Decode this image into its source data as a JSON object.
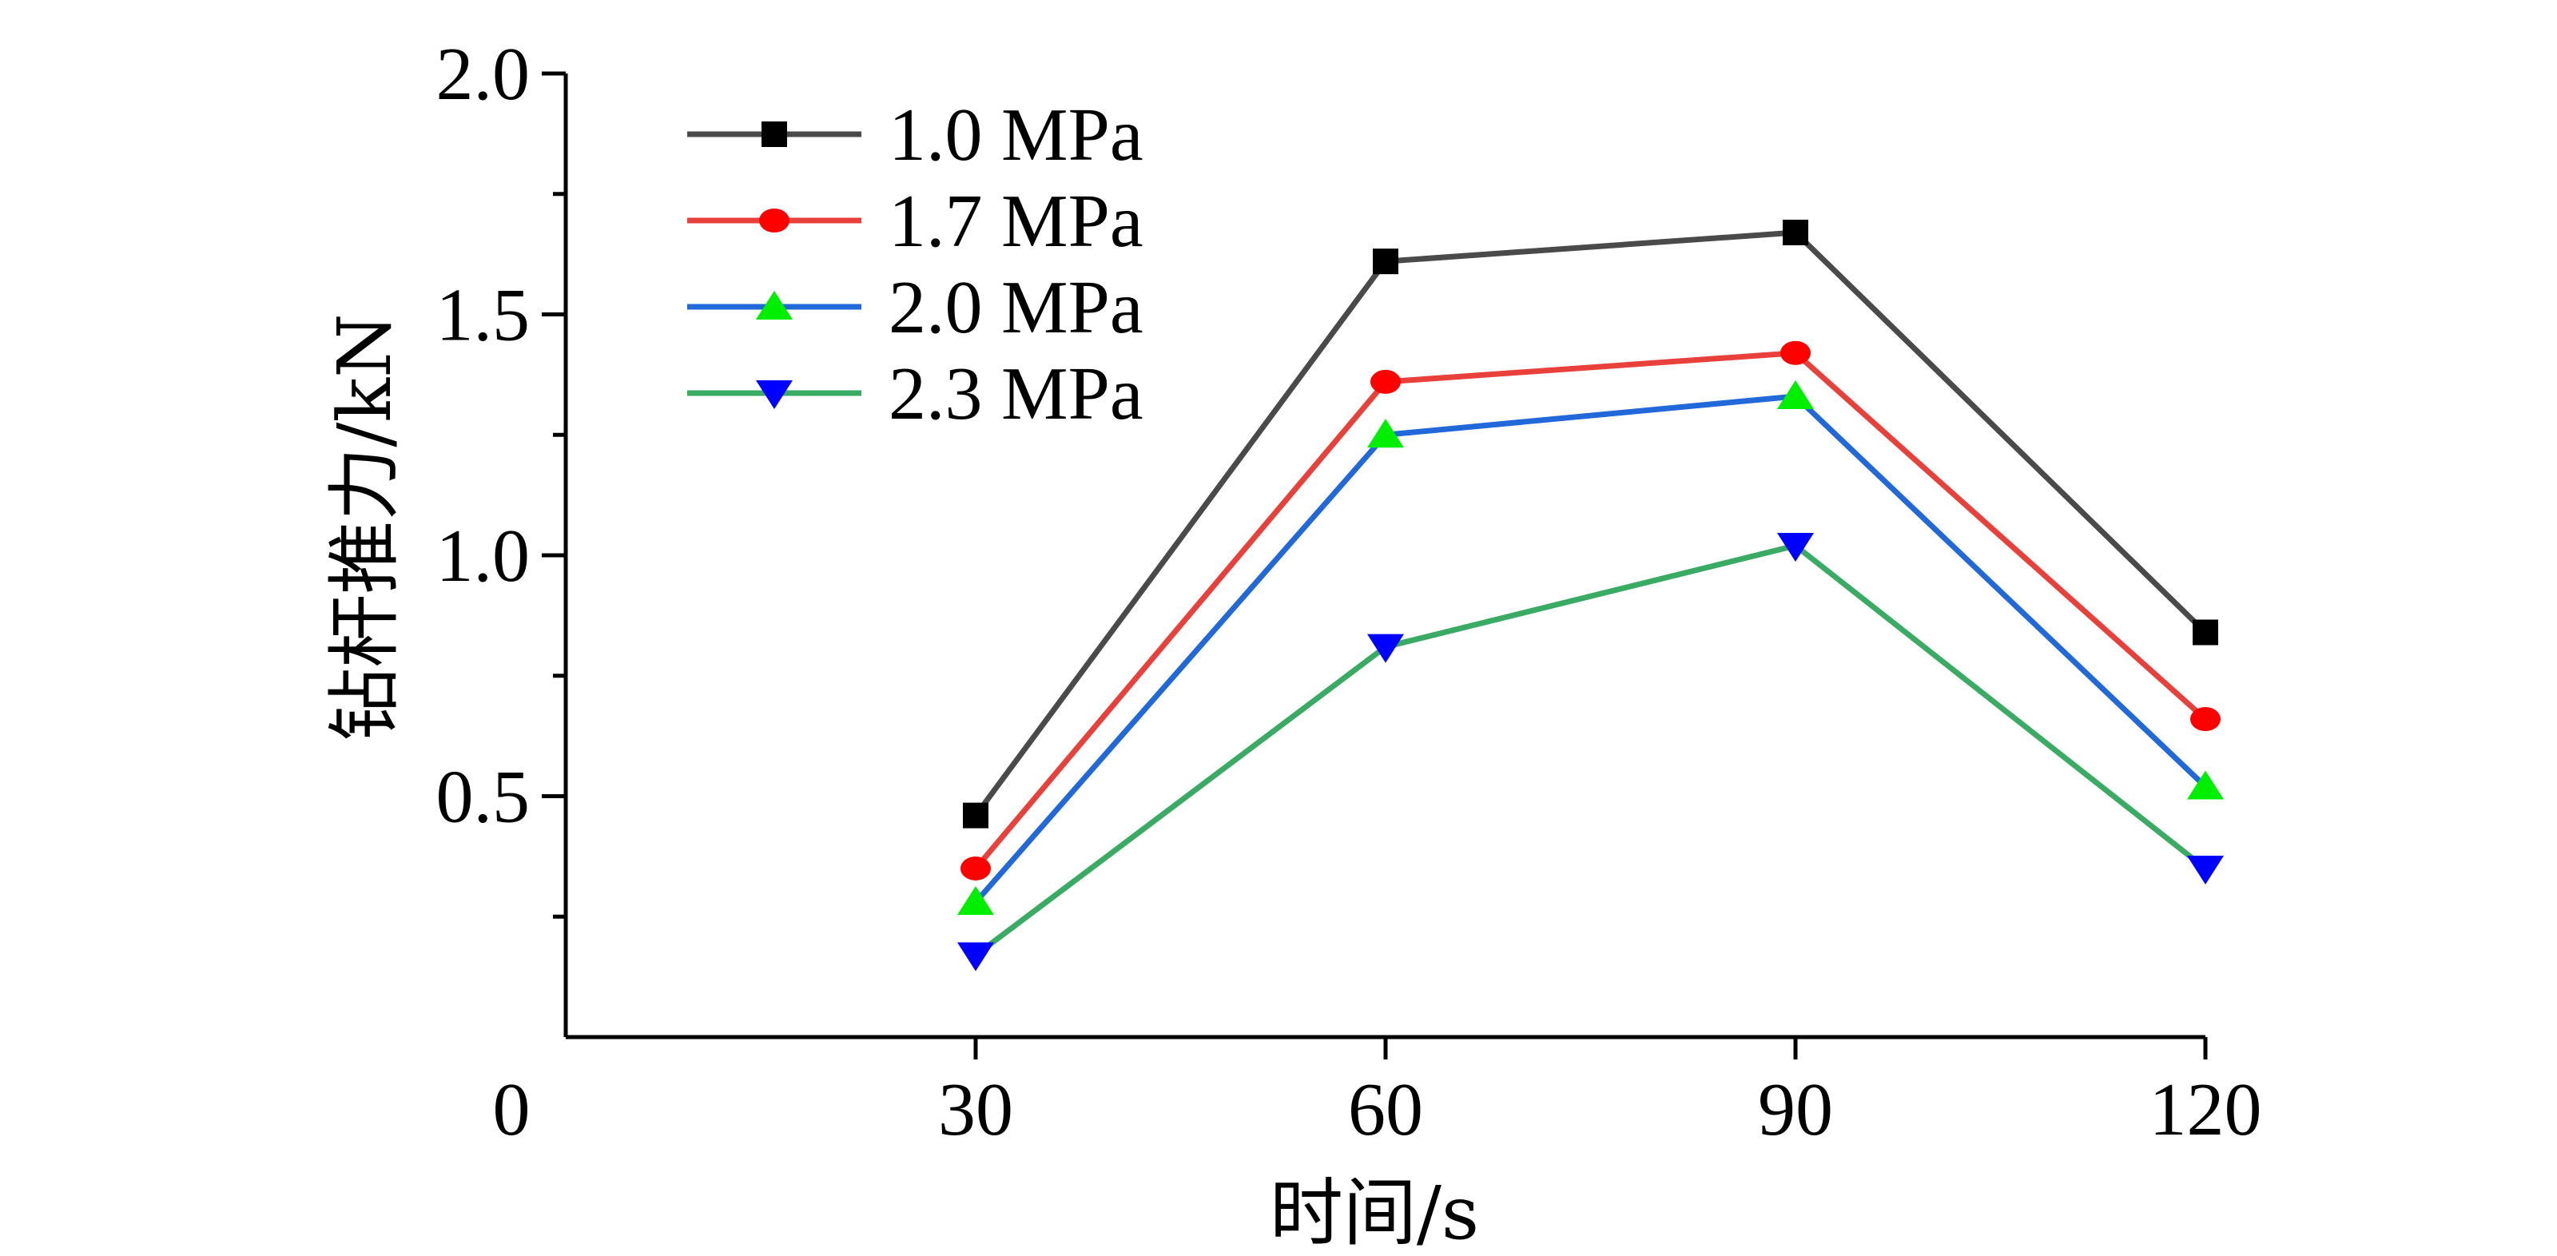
{
  "chart_data": {
    "type": "line",
    "title": "",
    "xlabel": "时间/s",
    "ylabel": "钻杆推力/kN",
    "x": [
      30,
      60,
      90,
      120
    ],
    "xlim": [
      0,
      120
    ],
    "ylim": [
      0,
      2.0
    ],
    "x_ticks": [
      "0",
      "30",
      "60",
      "90",
      "120"
    ],
    "y_ticks": [
      "0.5",
      "1.0",
      "1.5",
      "2.0"
    ],
    "grid": false,
    "legend_position": "top-left",
    "series": [
      {
        "name": "1.0 MPa",
        "values": [
          0.46,
          1.61,
          1.67,
          0.84
        ],
        "line_color": "#4a4a4a",
        "marker_color": "#000000",
        "marker": "square"
      },
      {
        "name": "1.7 MPa",
        "values": [
          0.35,
          1.36,
          1.42,
          0.66
        ],
        "line_color": "#e8413c",
        "marker_color": "#ff0000",
        "marker": "circle"
      },
      {
        "name": "2.0 MPa",
        "values": [
          0.28,
          1.25,
          1.33,
          0.52
        ],
        "line_color": "#2168d8",
        "marker_color": "#00ee00",
        "marker": "triangle-up"
      },
      {
        "name": "2.3 MPa",
        "values": [
          0.17,
          0.81,
          1.02,
          0.35
        ],
        "line_color": "#3aab63",
        "marker_color": "#0000ff",
        "marker": "triangle-down"
      }
    ]
  }
}
